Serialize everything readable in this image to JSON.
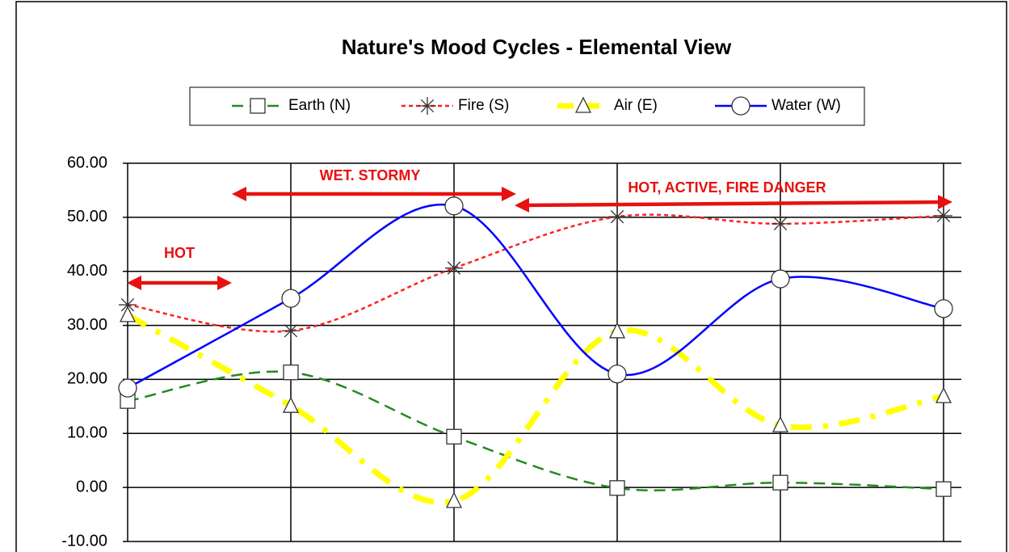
{
  "chart_data": {
    "type": "line",
    "title": "Nature's Mood Cycles - Elemental View",
    "categories": [
      null,
      null,
      null,
      null,
      null,
      null
    ],
    "series": [
      {
        "name": "Earth (N)",
        "color": "#228b22",
        "values": [
          16,
          21.3,
          9.4,
          -0.1,
          0.9,
          -0.3
        ]
      },
      {
        "name": "Fire (S)",
        "color": "#ff2020",
        "values": [
          33.8,
          29,
          40.6,
          50.1,
          48.8,
          50.3
        ]
      },
      {
        "name": "Air (E)",
        "color": "#ffff00",
        "values": [
          31.9,
          15.1,
          -2.5,
          28.9,
          11.5,
          16.9
        ]
      },
      {
        "name": "Water (W)",
        "color": "#0000ff",
        "values": [
          18.4,
          35,
          52.1,
          21,
          38.6,
          33.1
        ]
      }
    ],
    "ylim": [
      -10,
      60
    ],
    "yticks": [
      {
        "value": -10,
        "label": "-10.00"
      },
      {
        "value": 0,
        "label": "0.00"
      },
      {
        "value": 10,
        "label": "10.00"
      },
      {
        "value": 20,
        "label": "20.00"
      },
      {
        "value": 30,
        "label": "30.00"
      },
      {
        "value": 40,
        "label": "40.00"
      },
      {
        "value": 50,
        "label": "50.00"
      },
      {
        "value": 60,
        "label": "60.00"
      }
    ],
    "grid": true,
    "legend": "top",
    "annotations": [
      "HOT",
      "WET. STORMY",
      "HOT, ACTIVE, FIRE DANGER"
    ],
    "annotation_color": "#e81010"
  }
}
